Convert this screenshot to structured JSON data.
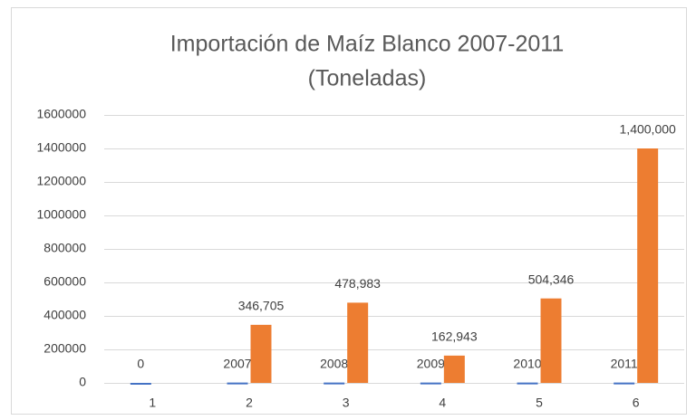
{
  "chart_data": {
    "type": "bar",
    "title": "Importación de Maíz  Blanco 2007-2011",
    "subtitle": "(Toneladas)",
    "categories": [
      1,
      2,
      3,
      4,
      5,
      6
    ],
    "series": [
      {
        "color": "#4472c4",
        "values": [
          0,
          2007,
          2008,
          2009,
          2010,
          2011
        ]
      },
      {
        "color": "#ed7d31",
        "values": [
          null,
          346705,
          478983,
          162943,
          504346,
          1400000
        ],
        "value_labels": [
          null,
          "346,705",
          "478,983",
          "162,943",
          "504,346",
          "1,400,000"
        ]
      }
    ],
    "ylim": [
      0,
      1600000
    ],
    "yticks": [
      0,
      200000,
      400000,
      600000,
      800000,
      1000000,
      1200000,
      1400000,
      1600000
    ],
    "grid": true
  }
}
